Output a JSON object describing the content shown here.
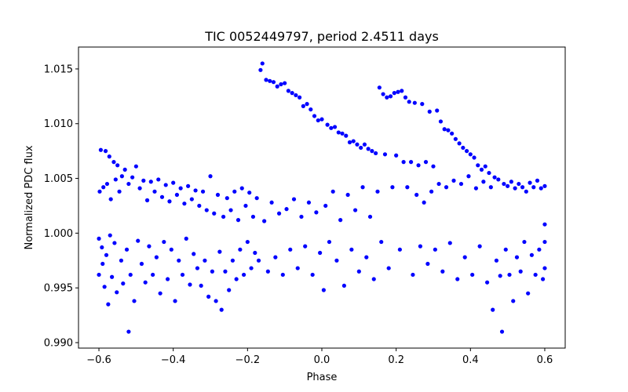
{
  "chart_data": {
    "type": "scatter",
    "title": "TIC 0052449797, period 2.4511 days",
    "xlabel": "Phase",
    "ylabel": "Normalized PDC flux",
    "xlim": [
      -0.655,
      0.655
    ],
    "ylim": [
      0.9895,
      1.017
    ],
    "grid": false,
    "legend": "none",
    "x_ticks": [
      -0.6,
      -0.4,
      -0.2,
      0.0,
      0.2,
      0.4,
      0.6
    ],
    "x_tick_labels": [
      "−0.6",
      "−0.4",
      "−0.2",
      "0.0",
      "0.2",
      "0.4",
      "0.6"
    ],
    "y_ticks": [
      0.99,
      0.995,
      1.0,
      1.005,
      1.01,
      1.015
    ],
    "y_tick_labels": [
      "0.990",
      "0.995",
      "1.000",
      "1.005",
      "1.010",
      "1.015"
    ],
    "series": [
      {
        "name": "flux",
        "color": "#0000ff",
        "points": [
          [
            -0.6,
            0.9962
          ],
          [
            -0.6,
            0.9995
          ],
          [
            -0.598,
            1.0038
          ],
          [
            -0.595,
            1.0076
          ],
          [
            -0.592,
            0.9987
          ],
          [
            -0.59,
            0.9972
          ],
          [
            -0.588,
            1.0042
          ],
          [
            -0.585,
            0.9951
          ],
          [
            -0.582,
            1.0075
          ],
          [
            -0.58,
            0.998
          ],
          [
            -0.578,
            1.0045
          ],
          [
            -0.575,
            0.9935
          ],
          [
            -0.572,
            1.007
          ],
          [
            -0.57,
            0.9998
          ],
          [
            -0.568,
            1.0031
          ],
          [
            -0.565,
            0.996
          ],
          [
            -0.56,
            1.0065
          ],
          [
            -0.558,
            0.9991
          ],
          [
            -0.555,
            1.0049
          ],
          [
            -0.552,
            0.9946
          ],
          [
            -0.55,
            1.0062
          ],
          [
            -0.545,
            1.0038
          ],
          [
            -0.54,
            0.9975
          ],
          [
            -0.538,
            1.0052
          ],
          [
            -0.535,
            0.9954
          ],
          [
            -0.53,
            1.0058
          ],
          [
            -0.525,
            0.9985
          ],
          [
            -0.52,
            1.0045
          ],
          [
            -0.52,
            0.991
          ],
          [
            -0.515,
            0.9962
          ],
          [
            -0.51,
            1.0051
          ],
          [
            -0.505,
            0.9938
          ],
          [
            -0.5,
            1.0061
          ],
          [
            -0.495,
            0.9993
          ],
          [
            -0.49,
            1.0041
          ],
          [
            -0.485,
            0.9972
          ],
          [
            -0.48,
            1.0048
          ],
          [
            -0.475,
            0.9955
          ],
          [
            -0.47,
            1.003
          ],
          [
            -0.465,
            0.9988
          ],
          [
            -0.46,
            1.0047
          ],
          [
            -0.455,
            0.9962
          ],
          [
            -0.45,
            1.0038
          ],
          [
            -0.445,
            0.9978
          ],
          [
            -0.44,
            1.0049
          ],
          [
            -0.435,
            0.9945
          ],
          [
            -0.43,
            1.0033
          ],
          [
            -0.425,
            0.9992
          ],
          [
            -0.42,
            1.0044
          ],
          [
            -0.415,
            0.9958
          ],
          [
            -0.41,
            1.0029
          ],
          [
            -0.405,
            0.9985
          ],
          [
            -0.4,
            1.0046
          ],
          [
            -0.395,
            0.9938
          ],
          [
            -0.39,
            1.0035
          ],
          [
            -0.385,
            0.9975
          ],
          [
            -0.38,
            1.0041
          ],
          [
            -0.375,
            0.9962
          ],
          [
            -0.37,
            1.0027
          ],
          [
            -0.365,
            0.9995
          ],
          [
            -0.36,
            1.0043
          ],
          [
            -0.355,
            0.9953
          ],
          [
            -0.35,
            1.0031
          ],
          [
            -0.345,
            0.9981
          ],
          [
            -0.34,
            1.0039
          ],
          [
            -0.335,
            0.9968
          ],
          [
            -0.33,
            1.0025
          ],
          [
            -0.325,
            0.9952
          ],
          [
            -0.32,
            1.0038
          ],
          [
            -0.315,
            0.9975
          ],
          [
            -0.31,
            1.0021
          ],
          [
            -0.305,
            0.9942
          ],
          [
            -0.3,
            1.0052
          ],
          [
            -0.295,
            0.9965
          ],
          [
            -0.29,
            1.0018
          ],
          [
            -0.285,
            0.9938
          ],
          [
            -0.28,
            1.0035
          ],
          [
            -0.275,
            0.9983
          ],
          [
            -0.27,
            0.993
          ],
          [
            -0.265,
            1.0015
          ],
          [
            -0.26,
            0.9965
          ],
          [
            -0.255,
            1.0032
          ],
          [
            -0.25,
            0.9948
          ],
          [
            -0.245,
            1.0021
          ],
          [
            -0.24,
            0.9975
          ],
          [
            -0.235,
            1.0038
          ],
          [
            -0.23,
            0.9958
          ],
          [
            -0.225,
            1.0012
          ],
          [
            -0.22,
            0.9985
          ],
          [
            -0.215,
            1.0041
          ],
          [
            -0.21,
            0.9962
          ],
          [
            -0.205,
            1.0025
          ],
          [
            -0.2,
            0.9992
          ],
          [
            -0.195,
            1.0037
          ],
          [
            -0.19,
            0.9968
          ],
          [
            -0.185,
            1.0015
          ],
          [
            -0.18,
            0.9982
          ],
          [
            -0.175,
            1.0032
          ],
          [
            -0.17,
            0.9975
          ],
          [
            -0.165,
            1.0149
          ],
          [
            -0.16,
            1.0155
          ],
          [
            -0.155,
            1.0011
          ],
          [
            -0.15,
            1.014
          ],
          [
            -0.145,
            0.9965
          ],
          [
            -0.14,
            1.0139
          ],
          [
            -0.135,
            1.0028
          ],
          [
            -0.13,
            1.0138
          ],
          [
            -0.125,
            0.9978
          ],
          [
            -0.12,
            1.0134
          ],
          [
            -0.115,
            1.0018
          ],
          [
            -0.11,
            1.0136
          ],
          [
            -0.105,
            0.9962
          ],
          [
            -0.1,
            1.0137
          ],
          [
            -0.095,
            1.0022
          ],
          [
            -0.09,
            1.013
          ],
          [
            -0.085,
            0.9985
          ],
          [
            -0.08,
            1.0128
          ],
          [
            -0.075,
            1.0031
          ],
          [
            -0.07,
            1.0126
          ],
          [
            -0.065,
            0.9968
          ],
          [
            -0.06,
            1.0124
          ],
          [
            -0.055,
            1.0015
          ],
          [
            -0.05,
            1.0116
          ],
          [
            -0.045,
            0.9988
          ],
          [
            -0.04,
            1.0118
          ],
          [
            -0.035,
            1.0028
          ],
          [
            -0.03,
            1.0113
          ],
          [
            -0.025,
            0.9962
          ],
          [
            -0.02,
            1.0107
          ],
          [
            -0.015,
            1.0019
          ],
          [
            -0.01,
            1.0103
          ],
          [
            -0.005,
            0.9982
          ],
          [
            0.0,
            1.0104
          ],
          [
            0.005,
            0.9948
          ],
          [
            0.01,
            1.0025
          ],
          [
            0.015,
            1.0099
          ],
          [
            0.02,
            0.9992
          ],
          [
            0.025,
            1.0096
          ],
          [
            0.03,
            1.0038
          ],
          [
            0.035,
            1.0097
          ],
          [
            0.04,
            0.9975
          ],
          [
            0.045,
            1.0092
          ],
          [
            0.05,
            1.0012
          ],
          [
            0.055,
            1.0091
          ],
          [
            0.06,
            0.9952
          ],
          [
            0.065,
            1.0089
          ],
          [
            0.07,
            1.0035
          ],
          [
            0.075,
            1.0083
          ],
          [
            0.08,
            0.9985
          ],
          [
            0.085,
            1.0084
          ],
          [
            0.09,
            1.0021
          ],
          [
            0.095,
            1.0081
          ],
          [
            0.1,
            0.9965
          ],
          [
            0.105,
            1.0078
          ],
          [
            0.11,
            1.0042
          ],
          [
            0.115,
            1.0081
          ],
          [
            0.12,
            0.9978
          ],
          [
            0.125,
            1.0077
          ],
          [
            0.13,
            1.0015
          ],
          [
            0.135,
            1.0075
          ],
          [
            0.14,
            0.9958
          ],
          [
            0.145,
            1.0073
          ],
          [
            0.15,
            1.0038
          ],
          [
            0.155,
            1.0133
          ],
          [
            0.16,
            0.9992
          ],
          [
            0.165,
            1.0127
          ],
          [
            0.17,
            1.0072
          ],
          [
            0.175,
            1.0124
          ],
          [
            0.18,
            0.9968
          ],
          [
            0.185,
            1.0125
          ],
          [
            0.19,
            1.0042
          ],
          [
            0.195,
            1.0128
          ],
          [
            0.2,
            1.0071
          ],
          [
            0.205,
            1.0129
          ],
          [
            0.21,
            0.9985
          ],
          [
            0.215,
            1.013
          ],
          [
            0.22,
            1.0065
          ],
          [
            0.225,
            1.0124
          ],
          [
            0.23,
            1.0042
          ],
          [
            0.235,
            1.012
          ],
          [
            0.24,
            1.0065
          ],
          [
            0.245,
            0.9962
          ],
          [
            0.25,
            1.0119
          ],
          [
            0.255,
            1.0035
          ],
          [
            0.26,
            1.0062
          ],
          [
            0.265,
            0.9988
          ],
          [
            0.27,
            1.0118
          ],
          [
            0.275,
            1.0028
          ],
          [
            0.28,
            1.0065
          ],
          [
            0.285,
            0.9972
          ],
          [
            0.29,
            1.0111
          ],
          [
            0.295,
            1.0038
          ],
          [
            0.3,
            1.0061
          ],
          [
            0.305,
            0.9985
          ],
          [
            0.31,
            1.0112
          ],
          [
            0.315,
            1.0045
          ],
          [
            0.32,
            1.0102
          ],
          [
            0.325,
            0.9965
          ],
          [
            0.33,
            1.0095
          ],
          [
            0.335,
            1.0042
          ],
          [
            0.34,
            1.0094
          ],
          [
            0.345,
            0.9991
          ],
          [
            0.35,
            1.0091
          ],
          [
            0.355,
            1.0048
          ],
          [
            0.36,
            1.0086
          ],
          [
            0.365,
            0.9958
          ],
          [
            0.37,
            1.0082
          ],
          [
            0.375,
            1.0045
          ],
          [
            0.38,
            1.0078
          ],
          [
            0.385,
            0.9978
          ],
          [
            0.39,
            1.0075
          ],
          [
            0.395,
            1.0052
          ],
          [
            0.4,
            1.0072
          ],
          [
            0.405,
            0.9962
          ],
          [
            0.41,
            1.0069
          ],
          [
            0.415,
            1.0041
          ],
          [
            0.42,
            1.0062
          ],
          [
            0.425,
            0.9988
          ],
          [
            0.43,
            1.0058
          ],
          [
            0.435,
            1.0047
          ],
          [
            0.44,
            1.0061
          ],
          [
            0.445,
            0.9955
          ],
          [
            0.45,
            1.0055
          ],
          [
            0.455,
            1.0042
          ],
          [
            0.46,
            0.993
          ],
          [
            0.465,
            1.0051
          ],
          [
            0.47,
            0.9975
          ],
          [
            0.475,
            1.0049
          ],
          [
            0.48,
            0.9961
          ],
          [
            0.485,
            0.991
          ],
          [
            0.49,
            1.0045
          ],
          [
            0.495,
            0.9985
          ],
          [
            0.5,
            1.0043
          ],
          [
            0.505,
            0.9962
          ],
          [
            0.51,
            1.0047
          ],
          [
            0.515,
            0.9938
          ],
          [
            0.52,
            1.0041
          ],
          [
            0.525,
            0.9978
          ],
          [
            0.53,
            1.0045
          ],
          [
            0.535,
            0.9965
          ],
          [
            0.54,
            1.0042
          ],
          [
            0.545,
            0.9992
          ],
          [
            0.55,
            1.0038
          ],
          [
            0.555,
            0.9945
          ],
          [
            0.56,
            1.0046
          ],
          [
            0.565,
            0.998
          ],
          [
            0.57,
            1.0042
          ],
          [
            0.575,
            0.9962
          ],
          [
            0.58,
            1.0048
          ],
          [
            0.585,
            0.9985
          ],
          [
            0.59,
            1.0041
          ],
          [
            0.595,
            0.9958
          ],
          [
            0.6,
            1.0043
          ],
          [
            0.6,
            0.9968
          ],
          [
            0.6,
            0.9992
          ],
          [
            0.6,
            1.0008
          ]
        ]
      }
    ]
  }
}
